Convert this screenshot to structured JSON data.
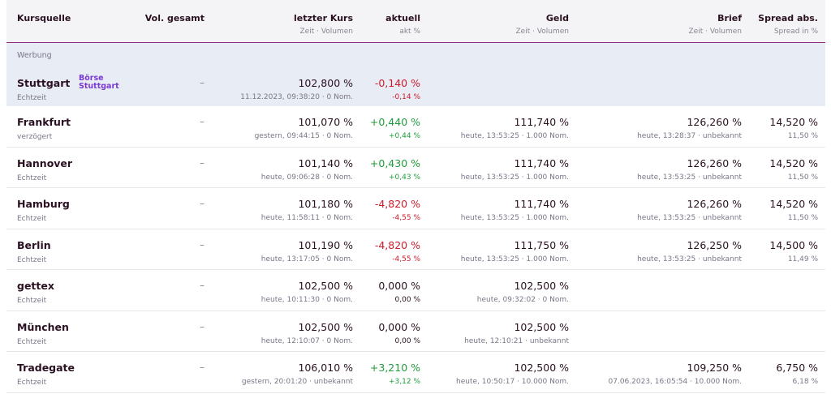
{
  "header": {
    "kursquelle": "Kursquelle",
    "vol_gesamt": "Vol. gesamt",
    "letzter_kurs": "letzter Kurs",
    "letzter_kurs_sub": "Zeit · Volumen",
    "aktuell": "aktuell",
    "aktuell_sub": "akt %",
    "geld": "Geld",
    "geld_sub": "Zeit · Volumen",
    "brief": "Brief",
    "brief_sub": "Zeit · Volumen",
    "spread": "Spread abs.",
    "spread_sub": "Spread in %"
  },
  "ad": {
    "label": "Werbung",
    "logo_line1": "Börse",
    "logo_line2": "Stuttgart",
    "row": {
      "name": "Stuttgart",
      "sub": "Echtzeit",
      "vol": "–",
      "kurs": "102,800 %",
      "kurs_sub": "11.12.2023, 09:38:20 · 0 Nom.",
      "akt": "-0,140 %",
      "akt_sub": "-0,14 %"
    }
  },
  "rows": [
    {
      "name": "Frankfurt",
      "sub": "verzögert",
      "vol": "–",
      "kurs": "101,070 %",
      "kurs_sub": "gestern, 09:44:15 · 0 Nom.",
      "akt": "+0,440 %",
      "akt_sub": "+0,44 %",
      "geld": "111,740 %",
      "geld_sub": "heute, 13:53:25 · 1.000 Nom.",
      "brief": "126,260 %",
      "brief_sub": "heute, 13:28:37 · unbekannt",
      "spread": "14,520 %",
      "spread_sub": "11,50 %"
    },
    {
      "name": "Hannover",
      "sub": "Echtzeit",
      "vol": "–",
      "kurs": "101,140 %",
      "kurs_sub": "heute, 09:06:28 · 0 Nom.",
      "akt": "+0,430 %",
      "akt_sub": "+0,43 %",
      "geld": "111,740 %",
      "geld_sub": "heute, 13:53:25 · 1.000 Nom.",
      "brief": "126,260 %",
      "brief_sub": "heute, 13:53:25 · unbekannt",
      "spread": "14,520 %",
      "spread_sub": "11,50 %"
    },
    {
      "name": "Hamburg",
      "sub": "Echtzeit",
      "vol": "–",
      "kurs": "101,180 %",
      "kurs_sub": "heute, 11:58:11 · 0 Nom.",
      "akt": "-4,820 %",
      "akt_sub": "-4,55 %",
      "geld": "111,740 %",
      "geld_sub": "heute, 13:53:25 · 1.000 Nom.",
      "brief": "126,260 %",
      "brief_sub": "heute, 13:53:25 · unbekannt",
      "spread": "14,520 %",
      "spread_sub": "11,50 %"
    },
    {
      "name": "Berlin",
      "sub": "Echtzeit",
      "vol": "–",
      "kurs": "101,190 %",
      "kurs_sub": "heute, 13:17:05 · 0 Nom.",
      "akt": "-4,820 %",
      "akt_sub": "-4,55 %",
      "geld": "111,750 %",
      "geld_sub": "heute, 13:53:25 · 1.000 Nom.",
      "brief": "126,250 %",
      "brief_sub": "heute, 13:53:25 · unbekannt",
      "spread": "14,500 %",
      "spread_sub": "11,49 %"
    },
    {
      "name": "gettex",
      "sub": "Echtzeit",
      "vol": "–",
      "kurs": "102,500 %",
      "kurs_sub": "heute, 10:11:30 · 0 Nom.",
      "akt": "0,000 %",
      "akt_sub": "0,00 %",
      "geld": "102,500 %",
      "geld_sub": "heute, 09:32:02 · 0 Nom.",
      "brief": "",
      "brief_sub": "",
      "spread": "",
      "spread_sub": ""
    },
    {
      "name": "München",
      "sub": "Echtzeit",
      "vol": "–",
      "kurs": "102,500 %",
      "kurs_sub": "heute, 12:10:07 · 0 Nom.",
      "akt": "0,000 %",
      "akt_sub": "0,00 %",
      "geld": "102,500 %",
      "geld_sub": "heute, 12:10:21 · unbekannt",
      "brief": "",
      "brief_sub": "",
      "spread": "",
      "spread_sub": ""
    },
    {
      "name": "Tradegate",
      "sub": "Echtzeit",
      "vol": "–",
      "kurs": "106,010 %",
      "kurs_sub": "gestern, 20:01:20 · unbekannt",
      "akt": "+3,210 %",
      "akt_sub": "+3,12 %",
      "geld": "102,500 %",
      "geld_sub": "heute, 10:50:17 · 10.000 Nom.",
      "brief": "109,250 %",
      "brief_sub": "07.06.2023, 16:05:54 · 10.000 Nom.",
      "spread": "6,750 %",
      "spread_sub": "6,18 %"
    }
  ],
  "colors": {
    "positive": "#1f9d3a",
    "negative": "#d11a2a",
    "accent": "#8e2a7e"
  }
}
